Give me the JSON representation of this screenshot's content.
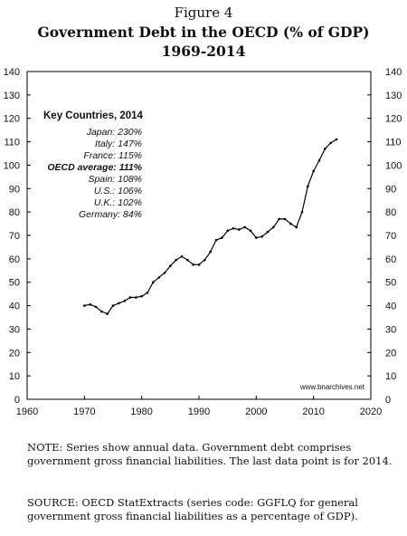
{
  "header": {
    "figure_label": "Figure 4",
    "title_line1": "Government Debt in the OECD (% of GDP)",
    "title_line2": "1969-2014"
  },
  "key_box": {
    "title": "Key Countries, 2014",
    "rows": [
      {
        "text": "Japan: 230%",
        "bold": false
      },
      {
        "text": "Italy: 147%",
        "bold": false
      },
      {
        "text": "France: 115%",
        "bold": false
      },
      {
        "text": "OECD average: 111%",
        "bold": true
      },
      {
        "text": "Spain: 108%",
        "bold": false
      },
      {
        "text": "U.S.: 106%",
        "bold": false
      },
      {
        "text": "U.K.: 102%",
        "bold": false
      },
      {
        "text": "Germany: 84%",
        "bold": false
      }
    ]
  },
  "watermark": "www.bnarchives.net",
  "notes": {
    "note": "NOTE: Series show annual data. Government debt comprises government gross financial liabilities. The last data point is for 2014.",
    "source": "SOURCE: OECD StatExtracts (series code: GGFLQ for general government gross financial liabilities as a percentage of GDP)."
  },
  "chart_data": {
    "type": "line",
    "x": [
      1970,
      1971,
      1972,
      1973,
      1974,
      1975,
      1976,
      1977,
      1978,
      1979,
      1980,
      1981,
      1982,
      1983,
      1984,
      1985,
      1986,
      1987,
      1988,
      1989,
      1990,
      1991,
      1992,
      1993,
      1994,
      1995,
      1996,
      1997,
      1998,
      1999,
      2000,
      2001,
      2002,
      2003,
      2004,
      2005,
      2006,
      2007,
      2008,
      2009,
      2010,
      2011,
      2012,
      2013,
      2014
    ],
    "series": [
      {
        "values": [
          40,
          40.5,
          39.5,
          37.5,
          36.5,
          40,
          41,
          42,
          43.5,
          43.5,
          44,
          45.5,
          50,
          52,
          54,
          57,
          59.5,
          61,
          59.5,
          57.5,
          57.5,
          59.5,
          63,
          68,
          69,
          72,
          73,
          72.5,
          73.5,
          72,
          69,
          69.5,
          71.5,
          73.5,
          77,
          77,
          75,
          73.5,
          80,
          91,
          97.5,
          102,
          107,
          109.5,
          111
        ]
      }
    ],
    "xlim": [
      1960,
      2020
    ],
    "ylim": [
      0,
      140
    ],
    "xticks": [
      1960,
      1970,
      1980,
      1990,
      2000,
      2010,
      2020
    ],
    "yticks": [
      0,
      10,
      20,
      30,
      40,
      50,
      60,
      70,
      80,
      90,
      100,
      110,
      120,
      130,
      140
    ],
    "ticks_both_sides": true,
    "grid": false,
    "color": "#000000"
  }
}
